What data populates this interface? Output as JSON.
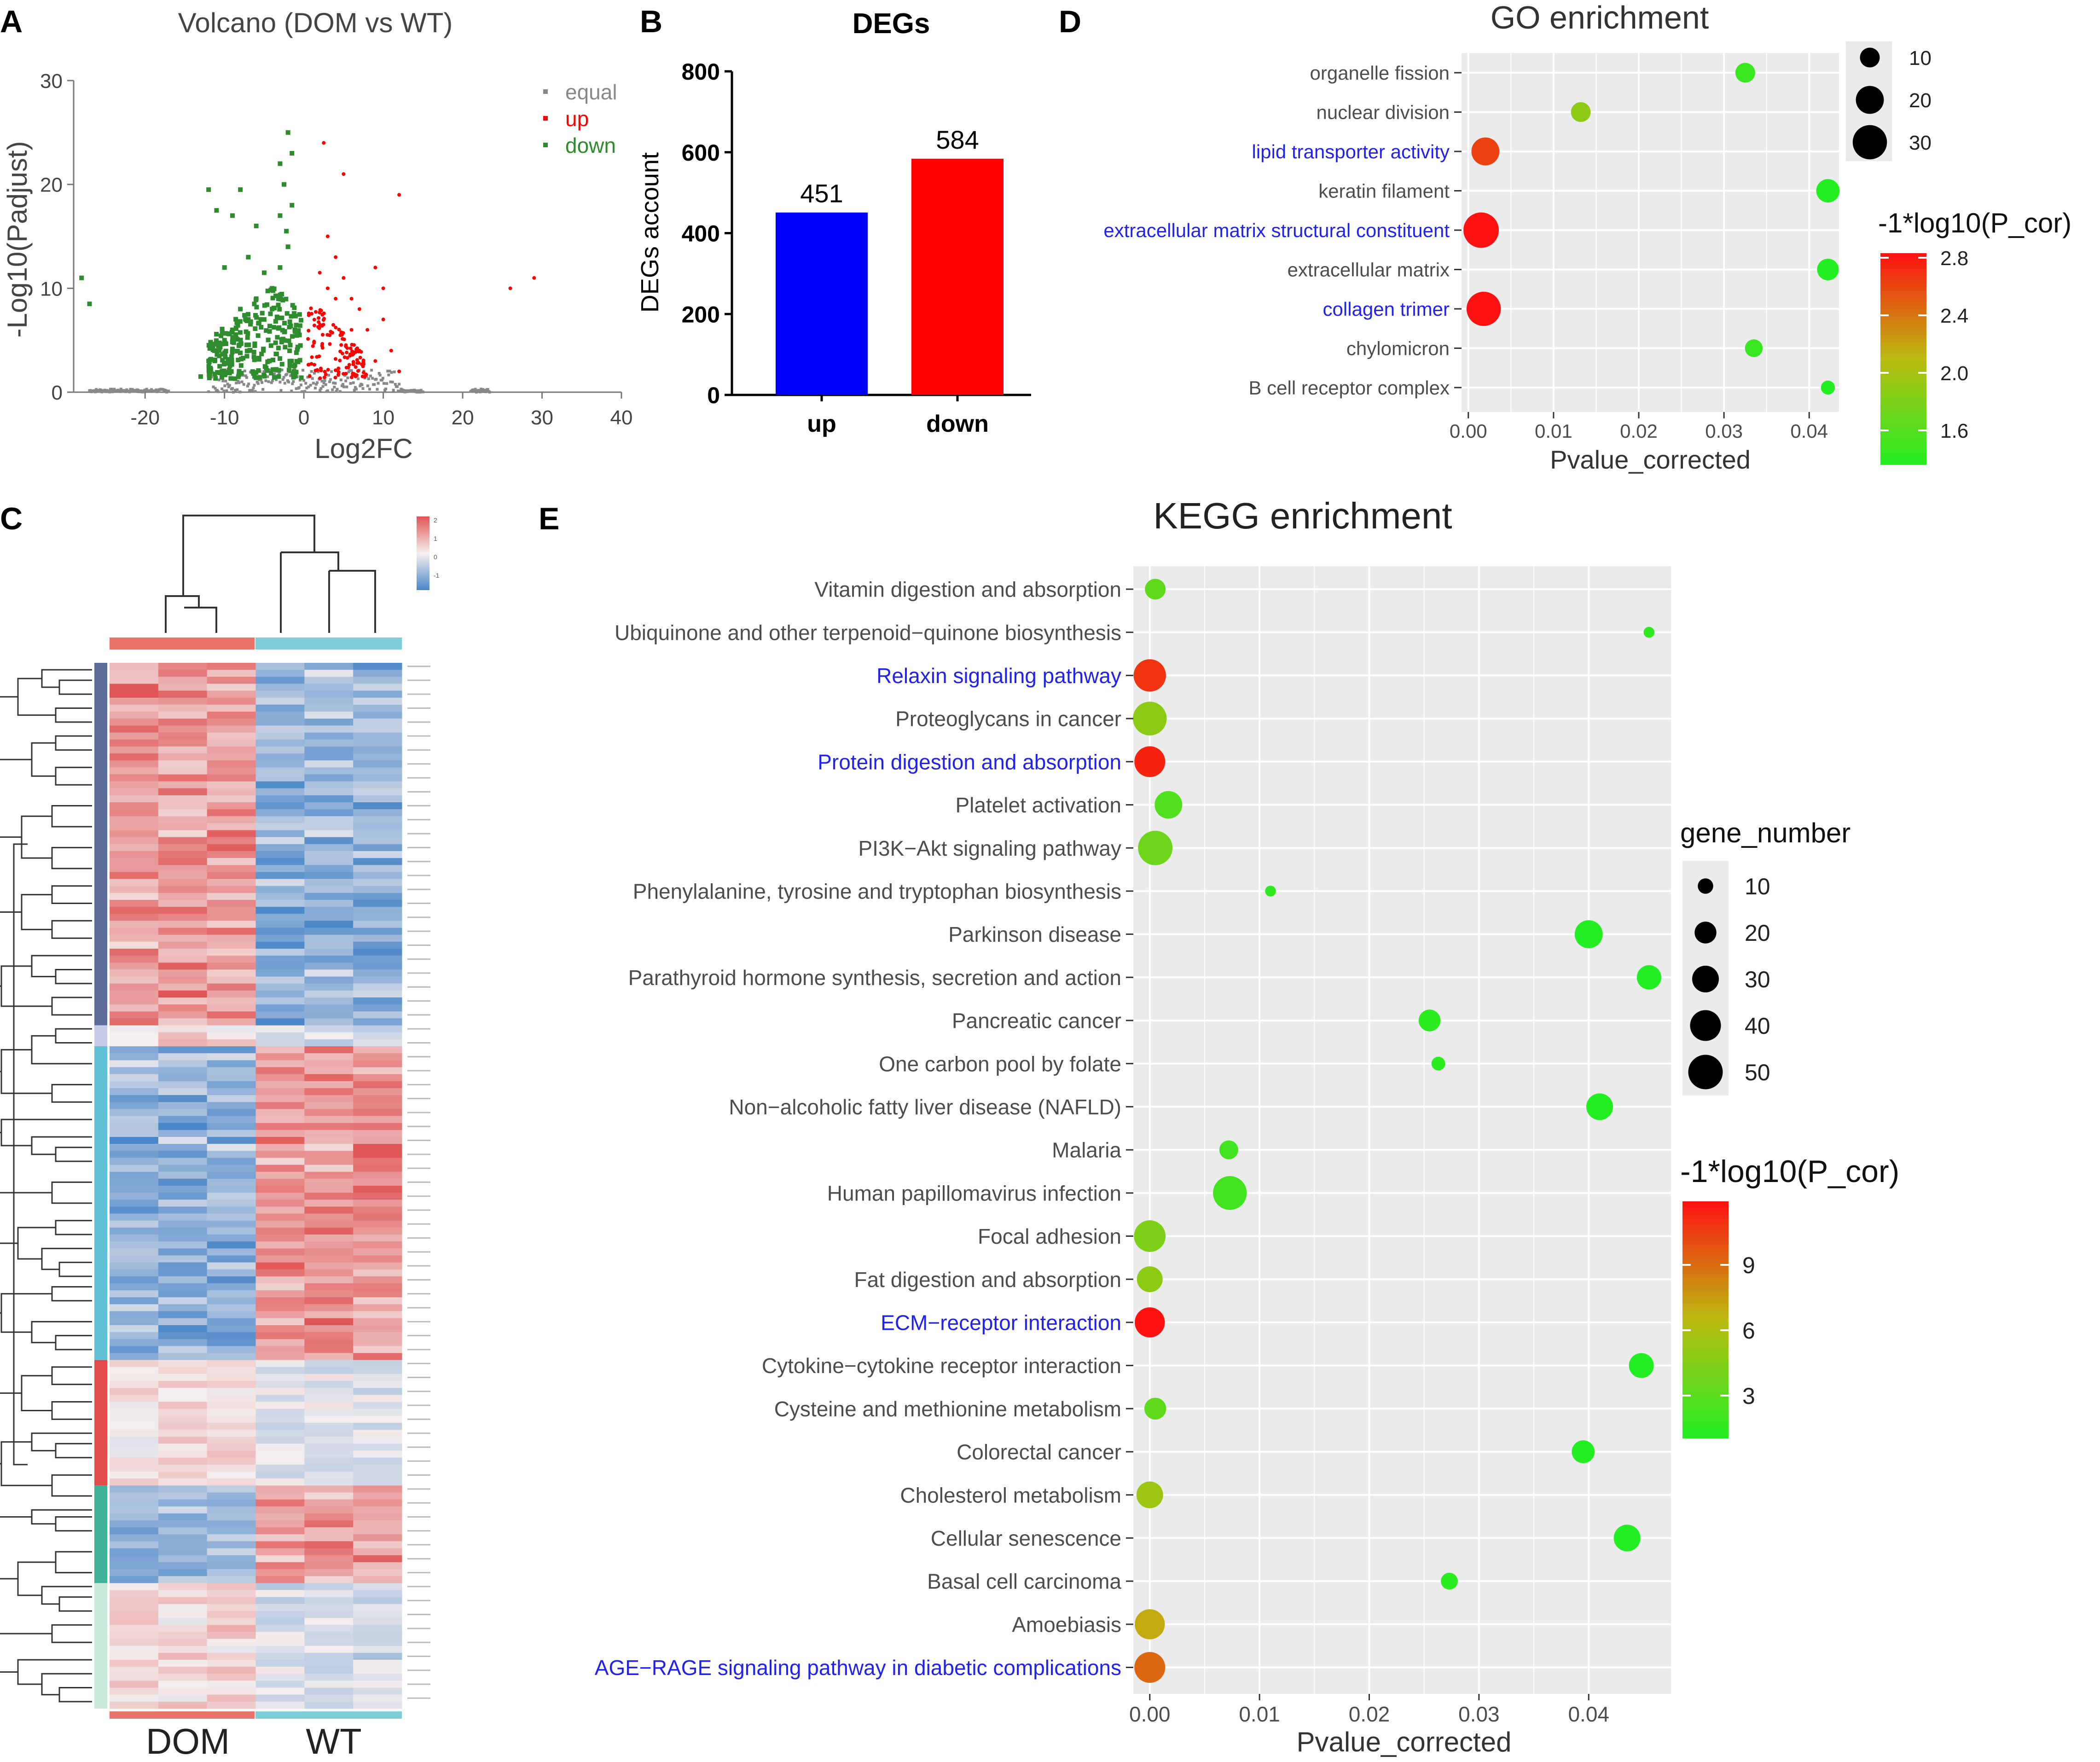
{
  "panels": {
    "A": {
      "label": "A"
    },
    "B": {
      "label": "B"
    },
    "C": {
      "label": "C"
    },
    "D": {
      "label": "D"
    },
    "E": {
      "label": "E"
    }
  },
  "colors": {
    "equal": "#888888",
    "up": "#ff0000",
    "down": "#2e8b2e",
    "bar_up": "#0000ff",
    "bar_down": "#ff0000",
    "highlight_term": "#2222ee",
    "panel_bg": "#ebebeb",
    "grid": "#ffffff",
    "grad_low": "#22ee22",
    "grad_mid": "#bbbb11",
    "grad_high": "#ff1111",
    "heat_high": "#e05555",
    "heat_low": "#4a86c8",
    "heat_mid": "#f4eeee",
    "dom_bar": "#e8736b",
    "wt_bar": "#7fcdd8"
  },
  "chart_data": [
    {
      "id": "volcano",
      "type": "scatter",
      "title": "Volcano (DOM vs WT)",
      "xlabel": "Log2FC",
      "ylabel": "-Log10(Padjust)",
      "xlim": [
        -29,
        40
      ],
      "ylim": [
        0,
        30
      ],
      "xticks": [
        -20,
        -10,
        0,
        10,
        20,
        30,
        40
      ],
      "yticks": [
        0,
        10,
        20,
        30
      ],
      "legend": [
        {
          "name": "equal",
          "color": "#888888"
        },
        {
          "name": "up",
          "color": "#ff0000"
        },
        {
          "name": "down",
          "color": "#2e8b2e"
        }
      ],
      "down_points": [
        [
          -28,
          11
        ],
        [
          -27,
          8.5
        ],
        [
          -12,
          19.5
        ],
        [
          -11,
          17.5
        ],
        [
          -10,
          12
        ],
        [
          -9,
          17
        ],
        [
          -8,
          19.5
        ],
        [
          -7,
          13
        ],
        [
          -6,
          16
        ],
        [
          -5,
          11.5
        ],
        [
          -4,
          10
        ],
        [
          -3,
          12
        ],
        [
          -2,
          14
        ],
        [
          -1.5,
          18
        ],
        [
          -2.5,
          20
        ],
        [
          -3,
          22
        ],
        [
          -2,
          25
        ],
        [
          -1.5,
          23
        ],
        [
          -4,
          8
        ],
        [
          -5,
          7
        ],
        [
          -6,
          9
        ],
        [
          -7,
          7
        ],
        [
          -8,
          8
        ],
        [
          -9,
          6
        ],
        [
          -10,
          5
        ],
        [
          -11,
          4
        ],
        [
          -12,
          3
        ],
        [
          -13,
          1.5
        ],
        [
          -3,
          17
        ],
        [
          -2.2,
          15.5
        ]
      ],
      "down_cloud": {
        "x_range": [
          -12,
          -0.3
        ],
        "y_max": 9,
        "n": 260
      },
      "up_points": [
        [
          2.5,
          24
        ],
        [
          5,
          21
        ],
        [
          9,
          12
        ],
        [
          12,
          19
        ],
        [
          10,
          10
        ],
        [
          7,
          8
        ],
        [
          6,
          9
        ],
        [
          4,
          13
        ],
        [
          3,
          15
        ],
        [
          8,
          6
        ],
        [
          11,
          4
        ],
        [
          9,
          3
        ],
        [
          5,
          11
        ],
        [
          4,
          9
        ],
        [
          3,
          10
        ],
        [
          6,
          6
        ],
        [
          2,
          11.5
        ],
        [
          7,
          4
        ],
        [
          26,
          10
        ],
        [
          29,
          11
        ],
        [
          12,
          2
        ],
        [
          10,
          7
        ]
      ],
      "up_cloud": {
        "x_range": [
          0.5,
          8
        ],
        "y_max": 8,
        "n": 120
      },
      "equal_segments": [
        [
          -27,
          -17
        ],
        [
          21,
          23.5
        ],
        [
          -12,
          15
        ]
      ]
    },
    {
      "id": "degs",
      "type": "bar",
      "title": "DEGs",
      "categories": [
        "up",
        "down"
      ],
      "values": [
        451,
        584
      ],
      "value_labels": [
        "451",
        "584"
      ],
      "ylabel": "DEGs account",
      "ylim": [
        0,
        800
      ],
      "yticks": [
        "0",
        "200",
        "400",
        "600",
        "800"
      ]
    },
    {
      "id": "heatmap",
      "type": "heatmap",
      "column_groups": [
        "DOM",
        "WT"
      ],
      "columns": 6,
      "rows": 150,
      "legend_ticks": [
        "2",
        "1",
        "0",
        "-1"
      ]
    },
    {
      "id": "go",
      "type": "scatter",
      "title": "GO enrichment",
      "xlabel": "Pvalue_corrected",
      "xlim": [
        -0.0008,
        0.0435
      ],
      "xticks": [
        "0.00",
        "0.01",
        "0.02",
        "0.03",
        "0.04"
      ],
      "terms": [
        {
          "name": "organelle fission",
          "p": 0.0325,
          "genes": 10,
          "score": 1.5,
          "highlight": false
        },
        {
          "name": "nuclear division",
          "p": 0.0132,
          "genes": 10,
          "score": 1.9,
          "highlight": false
        },
        {
          "name": "lipid transporter activity",
          "p": 0.002,
          "genes": 20,
          "score": 2.6,
          "highlight": true
        },
        {
          "name": "keratin filament",
          "p": 0.0422,
          "genes": 14,
          "score": 1.4,
          "highlight": false
        },
        {
          "name": "extracellular matrix structural constituent",
          "p": 0.0015,
          "genes": 32,
          "score": 2.8,
          "highlight": true
        },
        {
          "name": "extracellular matrix",
          "p": 0.0422,
          "genes": 12,
          "score": 1.4,
          "highlight": false
        },
        {
          "name": "collagen trimer",
          "p": 0.0018,
          "genes": 30,
          "score": 2.8,
          "highlight": true
        },
        {
          "name": "chylomicron",
          "p": 0.0335,
          "genes": 8,
          "score": 1.5,
          "highlight": false
        },
        {
          "name": "B cell receptor complex",
          "p": 0.0422,
          "genes": 5,
          "score": 1.4,
          "highlight": false
        }
      ],
      "size_legend_title": "",
      "size_legend": [
        "10",
        "20",
        "30"
      ],
      "color_legend_title": "-1*log10(P_cor)",
      "color_legend_ticks": [
        "2.8",
        "2.4",
        "2.0",
        "1.6"
      ]
    },
    {
      "id": "kegg",
      "type": "scatter",
      "title": "KEGG enrichment",
      "xlabel": "Pvalue_corrected",
      "xlim": [
        -0.0015,
        0.0475
      ],
      "xticks": [
        "0.00",
        "0.01",
        "0.02",
        "0.03",
        "0.04"
      ],
      "terms": [
        {
          "name": "Vitamin digestion and absorption",
          "p": 0.0005,
          "genes": 18,
          "score": 3.5,
          "highlight": false
        },
        {
          "name": "Ubiquinone and other terpenoid−quinone biosynthesis",
          "p": 0.0455,
          "genes": 5,
          "score": 2.0,
          "highlight": false
        },
        {
          "name": "Relaxin signaling pathway",
          "p": 0.0,
          "genes": 44,
          "score": 10.5,
          "highlight": true
        },
        {
          "name": "Proteoglycans in cancer",
          "p": 0.0,
          "genes": 48,
          "score": 5.0,
          "highlight": false
        },
        {
          "name": "Protein digestion and absorption",
          "p": 0.0,
          "genes": 40,
          "score": 11.0,
          "highlight": true
        },
        {
          "name": "Platelet activation",
          "p": 0.0017,
          "genes": 32,
          "score": 3.0,
          "highlight": false
        },
        {
          "name": "PI3K−Akt signaling pathway",
          "p": 0.0005,
          "genes": 50,
          "score": 4.0,
          "highlight": false
        },
        {
          "name": "Phenylalanine, tyrosine and tryptophan biosynthesis",
          "p": 0.011,
          "genes": 5,
          "score": 2.0,
          "highlight": false
        },
        {
          "name": "Parkinson disease",
          "p": 0.04,
          "genes": 33,
          "score": 1.5,
          "highlight": false
        },
        {
          "name": "Parathyroid hormone synthesis, secretion and action",
          "p": 0.0455,
          "genes": 25,
          "score": 1.5,
          "highlight": false
        },
        {
          "name": "Pancreatic cancer",
          "p": 0.0255,
          "genes": 20,
          "score": 1.8,
          "highlight": false
        },
        {
          "name": "One carbon pool by folate",
          "p": 0.0263,
          "genes": 8,
          "score": 1.8,
          "highlight": false
        },
        {
          "name": "Non−alcoholic fatty liver disease (NAFLD)",
          "p": 0.041,
          "genes": 30,
          "score": 1.5,
          "highlight": false
        },
        {
          "name": "Malaria",
          "p": 0.0072,
          "genes": 15,
          "score": 2.5,
          "highlight": false
        },
        {
          "name": "Human papillomavirus infection",
          "p": 0.0073,
          "genes": 48,
          "score": 2.5,
          "highlight": false
        },
        {
          "name": "Focal adhesion",
          "p": 0.0,
          "genes": 42,
          "score": 4.5,
          "highlight": false
        },
        {
          "name": "Fat digestion and absorption",
          "p": 0.0,
          "genes": 28,
          "score": 5.0,
          "highlight": false
        },
        {
          "name": "ECM−receptor interaction",
          "p": 0.0,
          "genes": 38,
          "score": 11.5,
          "highlight": true
        },
        {
          "name": "Cytokine−cytokine receptor interaction",
          "p": 0.0448,
          "genes": 26,
          "score": 1.5,
          "highlight": false
        },
        {
          "name": "Cysteine and methionine metabolism",
          "p": 0.0005,
          "genes": 20,
          "score": 3.5,
          "highlight": false
        },
        {
          "name": "Colorectal cancer",
          "p": 0.0395,
          "genes": 22,
          "score": 1.5,
          "highlight": false
        },
        {
          "name": "Cholesterol metabolism",
          "p": 0.0,
          "genes": 30,
          "score": 5.5,
          "highlight": false
        },
        {
          "name": "Cellular senescence",
          "p": 0.0435,
          "genes": 30,
          "score": 1.5,
          "highlight": false
        },
        {
          "name": "Basal cell carcinoma",
          "p": 0.0273,
          "genes": 12,
          "score": 1.8,
          "highlight": false
        },
        {
          "name": "Amoebiasis",
          "p": 0.0,
          "genes": 38,
          "score": 7.0,
          "highlight": false
        },
        {
          "name": "AGE−RAGE signaling pathway in diabetic complications",
          "p": 0.0,
          "genes": 40,
          "score": 9.0,
          "highlight": true
        }
      ],
      "size_legend_title": "gene_number",
      "size_legend": [
        "10",
        "20",
        "30",
        "40",
        "50"
      ],
      "color_legend_title": "-1*log10(P_cor)",
      "color_legend_ticks": [
        "9",
        "6",
        "3"
      ]
    }
  ]
}
